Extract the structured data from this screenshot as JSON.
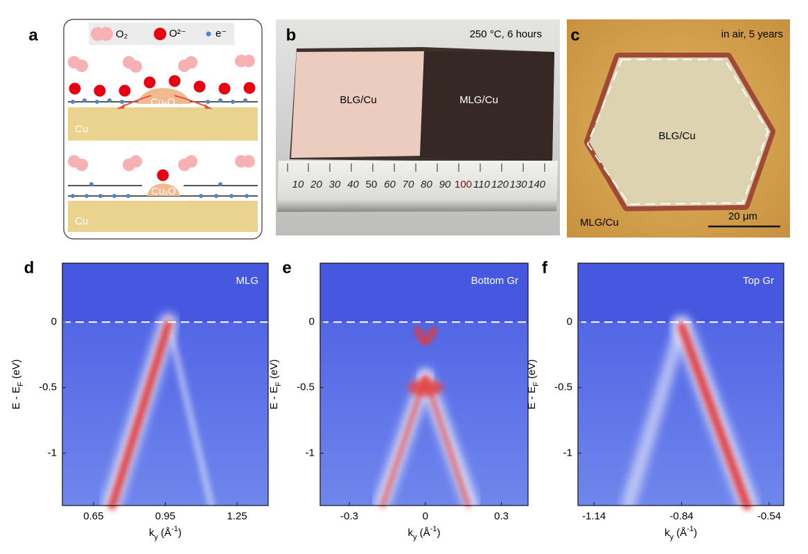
{
  "panel_a": {
    "label": "a",
    "legend": [
      "O₂",
      "O²⁻",
      "e⁻"
    ],
    "oxide": [
      "CuₓO",
      "CuₓO"
    ],
    "substrate": [
      "Cu",
      "Cu"
    ]
  },
  "panel_b": {
    "label": "b",
    "caption": "250 °C, 6 hours",
    "left": "BLG/Cu",
    "right": "MLG/Cu",
    "ruler": [
      "10",
      "20",
      "30",
      "40",
      "50",
      "60",
      "70",
      "80",
      "90",
      "100",
      "110",
      "120",
      "130",
      "140"
    ]
  },
  "panel_c": {
    "label": "c",
    "caption": "in air, 5 years",
    "center": "BLG/Cu",
    "corner": "MLG/Cu",
    "scale_bar": "20 μm"
  },
  "plots": [
    {
      "label": "d",
      "name": "MLG",
      "xlim": [
        0.52,
        1.38
      ],
      "xticks": [
        0.65,
        0.95,
        1.25
      ],
      "ylim": [
        -1.4,
        0.45
      ],
      "yticks": [
        0,
        -0.5,
        -1
      ],
      "xlabel": [
        "k",
        "y",
        " (Å",
        "-1",
        ")"
      ],
      "ylabel": [
        "E - E",
        "F",
        " (eV)"
      ]
    },
    {
      "label": "e",
      "name": "Bottom Gr",
      "xlim": [
        -0.415,
        0.405
      ],
      "xticks": [
        -0.3,
        0,
        0.3
      ],
      "ylim": [
        -1.4,
        0.45
      ],
      "yticks": [
        0,
        -0.5,
        -1
      ],
      "xlabel": [
        "k",
        "y",
        " (Å",
        "-1",
        ")"
      ],
      "ylabel": [
        "E - E",
        "F",
        " (eV)"
      ]
    },
    {
      "label": "f",
      "name": "Top Gr",
      "xlim": [
        -1.195,
        -0.49
      ],
      "xticks": [
        -1.14,
        -0.84,
        -0.54
      ],
      "ylim": [
        -1.4,
        0.45
      ],
      "yticks": [
        0,
        -0.5,
        -1
      ],
      "xlabel": [
        "k",
        "y",
        " (Å",
        "-1",
        ")"
      ],
      "ylabel": [
        "E - E",
        "F",
        " (eV)"
      ]
    }
  ]
}
